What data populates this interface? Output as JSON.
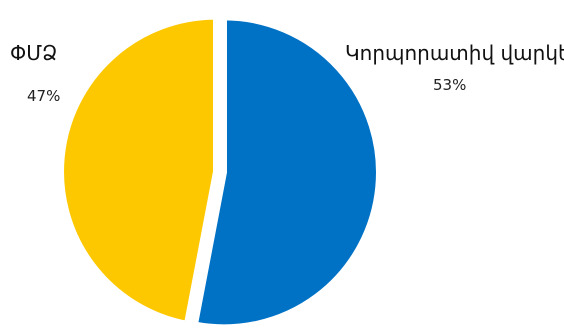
{
  "chart_data": {
    "type": "pie",
    "title": "",
    "categories": [
      "ՓՄՁ",
      "Կորպորատիվ վարկեր"
    ],
    "values": [
      47,
      53
    ],
    "labels": [
      "47%",
      "53%"
    ],
    "colors": [
      "#fdc800",
      "#0072c6"
    ],
    "exploded": true,
    "start": "top",
    "direction": "clockwise",
    "first_slice": "Կորպորատիվ վարկեր",
    "legend": "none"
  }
}
